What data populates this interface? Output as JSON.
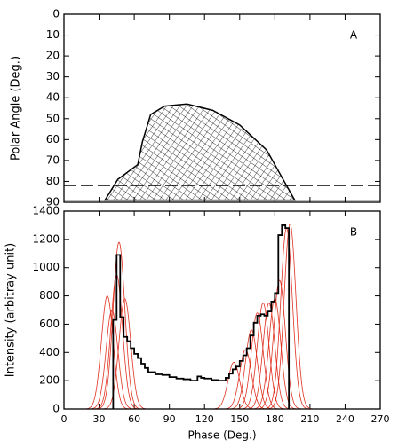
{
  "chart_data": [
    {
      "type": "line",
      "ylabel": "Polar Angle (Deg.)",
      "panel": "A",
      "xlim": [
        0,
        270
      ],
      "xticks": [
        0,
        30,
        60,
        90,
        120,
        150,
        180,
        210,
        240,
        270
      ],
      "ylim": [
        0,
        90
      ],
      "yticks": [
        0,
        10,
        20,
        30,
        40,
        50,
        60,
        70,
        80,
        90
      ],
      "y_inverted": true,
      "series": [
        {
          "color": "#000000",
          "x": [
            35,
            46,
            63,
            67,
            74,
            86,
            105,
            127,
            150,
            173,
            188,
            197
          ],
          "values": [
            89,
            79,
            72,
            61,
            48,
            44,
            43,
            46,
            53,
            65,
            80,
            89
          ]
        }
      ],
      "hlines": [
        {
          "value": 82,
          "style": "dashed"
        },
        {
          "value": 89,
          "style": "solid"
        }
      ]
    },
    {
      "type": "histogram",
      "ylabel": "Intensity (arbitray unit)",
      "xlabel": "Phase (Deg.)",
      "panel": "B",
      "xlim": [
        0,
        270
      ],
      "xticks": [
        0,
        30,
        60,
        90,
        120,
        150,
        180,
        210,
        240,
        270
      ],
      "ylim": [
        0,
        1400
      ],
      "yticks": [
        0,
        200,
        400,
        600,
        800,
        1000,
        1200,
        1400
      ],
      "color": "#000000",
      "bins": [
        42,
        45,
        48,
        51,
        54,
        57,
        60,
        63,
        66,
        69,
        72,
        78,
        84,
        90,
        96,
        102,
        108,
        114,
        117,
        120,
        126,
        132,
        138,
        141,
        144,
        147,
        150,
        153,
        156,
        159,
        162,
        165,
        168,
        171,
        174,
        177,
        180,
        183,
        186,
        189,
        192
      ],
      "counts": [
        630,
        1090,
        650,
        510,
        480,
        430,
        390,
        360,
        320,
        290,
        260,
        245,
        240,
        225,
        215,
        210,
        200,
        230,
        220,
        215,
        205,
        200,
        220,
        250,
        280,
        300,
        340,
        380,
        430,
        520,
        610,
        660,
        670,
        660,
        690,
        760,
        820,
        1230,
        1300,
        1280
      ],
      "curve_color": "#e03020",
      "curves": [
        {
          "center": 37,
          "amplitude": 800,
          "width": 5
        },
        {
          "center": 41,
          "amplitude": 700,
          "width": 5
        },
        {
          "center": 45,
          "amplitude": 950,
          "width": 5
        },
        {
          "center": 47,
          "amplitude": 1180,
          "width": 5
        },
        {
          "center": 52,
          "amplitude": 780,
          "width": 5
        },
        {
          "center": 145,
          "amplitude": 330,
          "width": 5
        },
        {
          "center": 155,
          "amplitude": 420,
          "width": 5
        },
        {
          "center": 160,
          "amplitude": 560,
          "width": 5
        },
        {
          "center": 165,
          "amplitude": 680,
          "width": 5
        },
        {
          "center": 170,
          "amplitude": 750,
          "width": 5
        },
        {
          "center": 175,
          "amplitude": 750,
          "width": 5
        },
        {
          "center": 180,
          "amplitude": 780,
          "width": 5
        },
        {
          "center": 184,
          "amplitude": 910,
          "width": 5
        },
        {
          "center": 190,
          "amplitude": 1280,
          "width": 5
        },
        {
          "center": 193,
          "amplitude": 1310,
          "width": 5
        }
      ]
    }
  ]
}
